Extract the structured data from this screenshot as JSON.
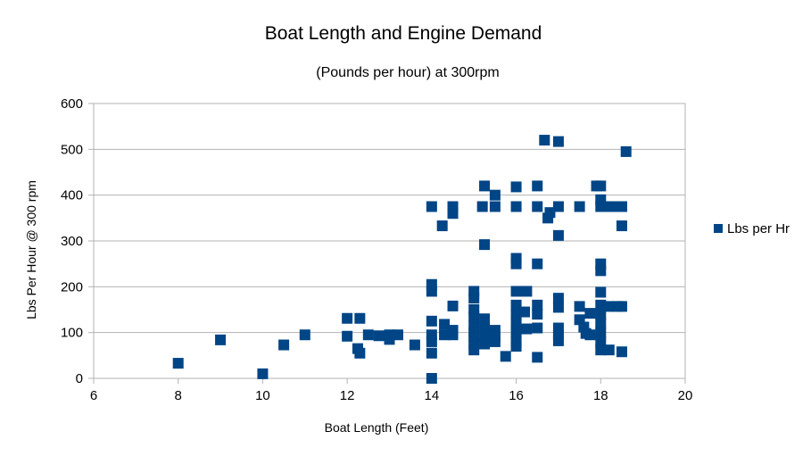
{
  "chart_data": {
    "type": "scatter",
    "title": "Boat Length and Engine Demand",
    "subtitle": "(Pounds per hour) at 300rpm",
    "xlabel": "Boat Length (Feet)",
    "ylabel": "Lbs Per Hour @ 300 rpm",
    "xlim": [
      6,
      20
    ],
    "ylim": [
      0,
      600
    ],
    "xticks": [
      6,
      8,
      10,
      12,
      14,
      16,
      18,
      20
    ],
    "yticks": [
      0,
      100,
      200,
      300,
      400,
      500,
      600
    ],
    "grid": "horizontal",
    "legend_position": "right",
    "color": "#004586",
    "series": [
      {
        "name": "Lbs per Hr",
        "points": [
          [
            8,
            33
          ],
          [
            9,
            84
          ],
          [
            10,
            10
          ],
          [
            10.5,
            73
          ],
          [
            11,
            95
          ],
          [
            12,
            131
          ],
          [
            12,
            92
          ],
          [
            12.3,
            131
          ],
          [
            12.25,
            65
          ],
          [
            12.3,
            55
          ],
          [
            12.5,
            95
          ],
          [
            12.75,
            93
          ],
          [
            13,
            95
          ],
          [
            13,
            85
          ],
          [
            13.2,
            95
          ],
          [
            13.6,
            73
          ],
          [
            14,
            375
          ],
          [
            14,
            205
          ],
          [
            14,
            190
          ],
          [
            14,
            125
          ],
          [
            14,
            95
          ],
          [
            14,
            80
          ],
          [
            14,
            55
          ],
          [
            14,
            0
          ],
          [
            14.25,
            333
          ],
          [
            14.3,
            118
          ],
          [
            14.3,
            95
          ],
          [
            14.5,
            375
          ],
          [
            14.5,
            360
          ],
          [
            14.5,
            158
          ],
          [
            14.5,
            105
          ],
          [
            14.5,
            95
          ],
          [
            15,
            190
          ],
          [
            15,
            175
          ],
          [
            15,
            150
          ],
          [
            15,
            135
          ],
          [
            15,
            115
          ],
          [
            15,
            100
          ],
          [
            15,
            90
          ],
          [
            15,
            75
          ],
          [
            15,
            62
          ],
          [
            15.2,
            375
          ],
          [
            15.25,
            420
          ],
          [
            15.25,
            292
          ],
          [
            15.25,
            130
          ],
          [
            15.25,
            110
          ],
          [
            15.25,
            90
          ],
          [
            15.25,
            75
          ],
          [
            15.5,
            400
          ],
          [
            15.5,
            375
          ],
          [
            15.5,
            105
          ],
          [
            15.5,
            92
          ],
          [
            15.5,
            80
          ],
          [
            15.75,
            48
          ],
          [
            16,
            418
          ],
          [
            16,
            375
          ],
          [
            16,
            262
          ],
          [
            16,
            250
          ],
          [
            16,
            190
          ],
          [
            16,
            160
          ],
          [
            16,
            140
          ],
          [
            16,
            120
          ],
          [
            16,
            100
          ],
          [
            16,
            80
          ],
          [
            16,
            70
          ],
          [
            16.2,
            145
          ],
          [
            16.25,
            190
          ],
          [
            16.25,
            108
          ],
          [
            16.5,
            420
          ],
          [
            16.5,
            375
          ],
          [
            16.5,
            250
          ],
          [
            16.5,
            160
          ],
          [
            16.5,
            140
          ],
          [
            16.5,
            110
          ],
          [
            16.5,
            46
          ],
          [
            16.67,
            520
          ],
          [
            16.75,
            350
          ],
          [
            16.8,
            362
          ],
          [
            17,
            517
          ],
          [
            17,
            375
          ],
          [
            17,
            312
          ],
          [
            17,
            175
          ],
          [
            17,
            155
          ],
          [
            17,
            110
          ],
          [
            17,
            95
          ],
          [
            17,
            82
          ],
          [
            17.5,
            375
          ],
          [
            17.5,
            157
          ],
          [
            17.5,
            128
          ],
          [
            17.6,
            112
          ],
          [
            17.65,
            98
          ],
          [
            17.75,
            142
          ],
          [
            17.75,
            95
          ],
          [
            17.9,
            420
          ],
          [
            18,
            420
          ],
          [
            18,
            390
          ],
          [
            18,
            375
          ],
          [
            18,
            250
          ],
          [
            18,
            235
          ],
          [
            18,
            188
          ],
          [
            18,
            160
          ],
          [
            18,
            140
          ],
          [
            18,
            120
          ],
          [
            18,
            100
          ],
          [
            18,
            80
          ],
          [
            18,
            62
          ],
          [
            18.2,
            375
          ],
          [
            18.2,
            157
          ],
          [
            18.2,
            62
          ],
          [
            18.4,
            375
          ],
          [
            18.4,
            157
          ],
          [
            18.5,
            375
          ],
          [
            18.5,
            333
          ],
          [
            18.5,
            157
          ],
          [
            18.5,
            58
          ],
          [
            18.6,
            495
          ]
        ]
      }
    ]
  }
}
